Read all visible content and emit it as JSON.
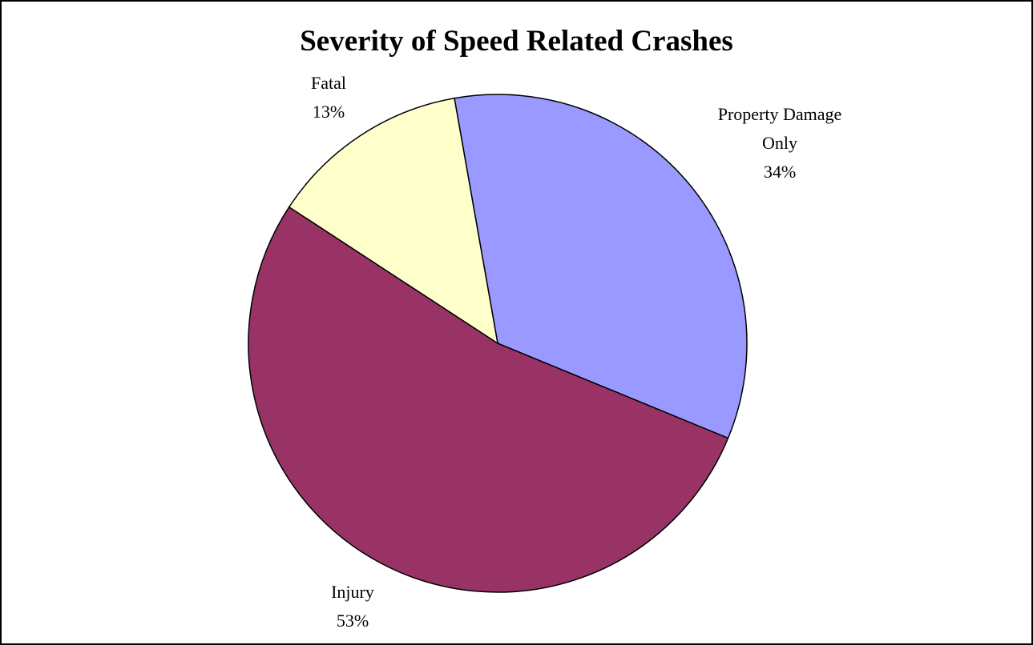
{
  "chart_data": {
    "type": "pie",
    "title": "Severity of Speed Related Crashes",
    "categories": [
      "Property Damage Only",
      "Injury",
      "Fatal"
    ],
    "values": [
      34,
      53,
      13
    ],
    "value_labels": [
      "34%",
      "53%",
      "13%"
    ],
    "colors": [
      "#9999ff",
      "#993366",
      "#ffffcc"
    ]
  }
}
